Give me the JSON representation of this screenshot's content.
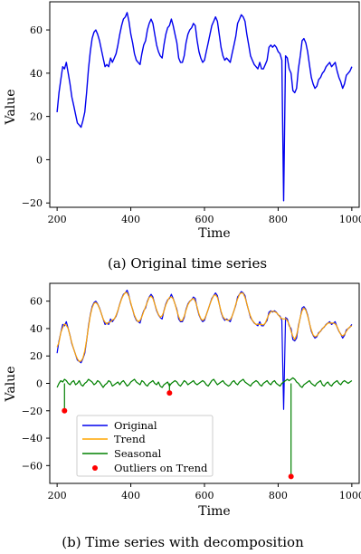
{
  "chart_data": [
    {
      "type": "line",
      "caption": "(a) Original time series",
      "xlabel": "Time",
      "ylabel": "Value",
      "xlim": [
        180,
        1020
      ],
      "ylim": [
        -22,
        73
      ],
      "xticks": [
        200,
        400,
        600,
        800,
        1000
      ],
      "yticks": [
        60,
        40,
        20,
        0,
        -20
      ],
      "xtick_labels": [
        "200",
        "400",
        "600",
        "800",
        "1000"
      ],
      "ytick_labels": [
        "60",
        "40",
        "20",
        "0",
        "−20"
      ],
      "grid": false,
      "colors": {
        "original": "#0000ee"
      },
      "series": [
        {
          "key": "original",
          "x": [
            200,
            205,
            210,
            215,
            220,
            225,
            230,
            235,
            240,
            245,
            250,
            255,
            260,
            265,
            270,
            275,
            280,
            285,
            290,
            295,
            300,
            305,
            310,
            315,
            320,
            325,
            330,
            335,
            340,
            345,
            350,
            355,
            360,
            365,
            370,
            375,
            380,
            385,
            390,
            395,
            400,
            405,
            410,
            415,
            420,
            425,
            430,
            435,
            440,
            445,
            450,
            455,
            460,
            465,
            470,
            475,
            480,
            485,
            490,
            495,
            500,
            505,
            510,
            515,
            520,
            525,
            530,
            535,
            540,
            545,
            550,
            555,
            560,
            565,
            570,
            575,
            580,
            585,
            590,
            595,
            600,
            605,
            610,
            615,
            620,
            625,
            630,
            635,
            640,
            645,
            650,
            655,
            660,
            665,
            670,
            675,
            680,
            685,
            690,
            695,
            700,
            705,
            710,
            715,
            720,
            725,
            730,
            735,
            740,
            745,
            750,
            755,
            760,
            765,
            770,
            775,
            780,
            785,
            790,
            795,
            800,
            805,
            810,
            815,
            820,
            825,
            830,
            835,
            840,
            845,
            850,
            855,
            860,
            865,
            870,
            875,
            880,
            885,
            890,
            895,
            900,
            905,
            910,
            915,
            920,
            925,
            930,
            935,
            940,
            945,
            950,
            955,
            960,
            965,
            970,
            975,
            980,
            985,
            990,
            995,
            1000
          ],
          "y": [
            22,
            31,
            37,
            43,
            42,
            45,
            40,
            35,
            29,
            25,
            21,
            17,
            16,
            15,
            18,
            22,
            31,
            42,
            50,
            56,
            59,
            60,
            58,
            55,
            51,
            47,
            43,
            44,
            43,
            47,
            45,
            47,
            49,
            53,
            58,
            62,
            65,
            66,
            68,
            64,
            58,
            54,
            49,
            46,
            45,
            44,
            49,
            53,
            55,
            60,
            63,
            65,
            63,
            58,
            53,
            50,
            48,
            47,
            53,
            58,
            61,
            62,
            65,
            62,
            58,
            54,
            47,
            45,
            45,
            48,
            54,
            58,
            60,
            61,
            63,
            62,
            55,
            50,
            47,
            45,
            46,
            50,
            54,
            58,
            62,
            64,
            66,
            64,
            58,
            52,
            48,
            46,
            47,
            46,
            45,
            49,
            53,
            57,
            63,
            65,
            67,
            66,
            64,
            58,
            53,
            48,
            46,
            44,
            43,
            42,
            45,
            42,
            42,
            44,
            46,
            52,
            53,
            52,
            53,
            52,
            50,
            49,
            46,
            -19,
            48,
            47,
            42,
            40,
            32,
            31,
            33,
            42,
            48,
            55,
            56,
            54,
            50,
            44,
            38,
            35,
            33,
            34,
            37,
            38,
            40,
            41,
            43,
            44,
            45,
            43,
            44,
            45,
            41,
            38,
            36,
            33,
            35,
            39,
            40,
            41,
            43
          ]
        }
      ]
    },
    {
      "type": "line",
      "caption": "(b) Time series with decomposition",
      "xlabel": "Time",
      "ylabel": "Value",
      "xlim": [
        180,
        1020
      ],
      "ylim": [
        -73,
        73
      ],
      "xticks": [
        200,
        400,
        600,
        800,
        1000
      ],
      "yticks": [
        60,
        40,
        20,
        0,
        -20,
        -40,
        -60
      ],
      "xtick_labels": [
        "200",
        "400",
        "600",
        "800",
        "1000"
      ],
      "ytick_labels": [
        "60",
        "40",
        "20",
        "0",
        "−20",
        "−40",
        "−60"
      ],
      "grid": false,
      "legend_position": "lower-left",
      "legend": [
        "Original",
        "Trend",
        "Seasonal",
        "Outliers on Trend"
      ],
      "colors": {
        "original": "#0000ee",
        "trend": "#ffa500",
        "seasonal": "#008000",
        "outliers": "#ff0000"
      },
      "outliers": {
        "x": [
          220,
          505,
          835
        ],
        "y": [
          -20,
          -7,
          -68
        ]
      },
      "seasonal": {
        "x": [
          200,
          205,
          210,
          215,
          220,
          225,
          230,
          235,
          240,
          245,
          250,
          255,
          260,
          265,
          270,
          275,
          280,
          285,
          290,
          295,
          300,
          305,
          310,
          315,
          320,
          325,
          330,
          335,
          340,
          345,
          350,
          355,
          360,
          365,
          370,
          375,
          380,
          385,
          390,
          395,
          400,
          405,
          410,
          415,
          420,
          425,
          430,
          435,
          440,
          445,
          450,
          455,
          460,
          465,
          470,
          475,
          480,
          485,
          490,
          495,
          500,
          505,
          510,
          515,
          520,
          525,
          530,
          535,
          540,
          545,
          550,
          555,
          560,
          565,
          570,
          575,
          580,
          585,
          590,
          595,
          600,
          605,
          610,
          615,
          620,
          625,
          630,
          635,
          640,
          645,
          650,
          655,
          660,
          665,
          670,
          675,
          680,
          685,
          690,
          695,
          700,
          705,
          710,
          715,
          720,
          725,
          730,
          735,
          740,
          745,
          750,
          755,
          760,
          765,
          770,
          775,
          780,
          785,
          790,
          795,
          800,
          805,
          810,
          815,
          820,
          825,
          830,
          835,
          840,
          845,
          850,
          855,
          860,
          865,
          870,
          875,
          880,
          885,
          890,
          895,
          900,
          905,
          910,
          915,
          920,
          925,
          930,
          935,
          940,
          945,
          950,
          955,
          960,
          965,
          970,
          975,
          980,
          985,
          990,
          995,
          1000
        ],
        "y": [
          -3,
          0,
          2,
          1,
          3,
          2,
          0,
          -1,
          1,
          2,
          -1,
          0,
          2,
          -1,
          -2,
          0,
          1,
          3,
          2,
          1,
          -1,
          0,
          2,
          1,
          -1,
          -3,
          -1,
          0,
          2,
          1,
          -2,
          -1,
          0,
          1,
          -1,
          1,
          2,
          0,
          -2,
          -1,
          1,
          2,
          3,
          1,
          0,
          -1,
          2,
          1,
          -1,
          -2,
          0,
          1,
          2,
          0,
          -1,
          1,
          -2,
          -3,
          -1,
          0,
          1,
          -2,
          0,
          1,
          2,
          1,
          -1,
          -2,
          0,
          2,
          1,
          -1,
          0,
          1,
          2,
          0,
          -1,
          0,
          1,
          2,
          1,
          -1,
          -2,
          0,
          2,
          3,
          1,
          -1,
          0,
          1,
          2,
          0,
          -1,
          -2,
          -1,
          1,
          2,
          0,
          -1,
          1,
          2,
          3,
          1,
          0,
          -1,
          -2,
          0,
          1,
          2,
          1,
          -1,
          -2,
          0,
          1,
          2,
          0,
          -1,
          1,
          2,
          0,
          -1,
          -2,
          0,
          1,
          2,
          3,
          2,
          3,
          4,
          3,
          1,
          0,
          -2,
          -3,
          -1,
          0,
          1,
          2,
          0,
          -1,
          -2,
          0,
          1,
          2,
          -1,
          -2,
          0,
          1,
          -1,
          -2,
          0,
          1,
          2,
          0,
          -1,
          1,
          2,
          1,
          0,
          1,
          2
        ]
      }
    }
  ],
  "captions": {
    "a": "(a) Original time series",
    "b": "(b) Time series with decomposition"
  },
  "legend_labels": {
    "original": "Original",
    "trend": "Trend",
    "seasonal": "Seasonal",
    "outliers": "Outliers on Trend"
  }
}
